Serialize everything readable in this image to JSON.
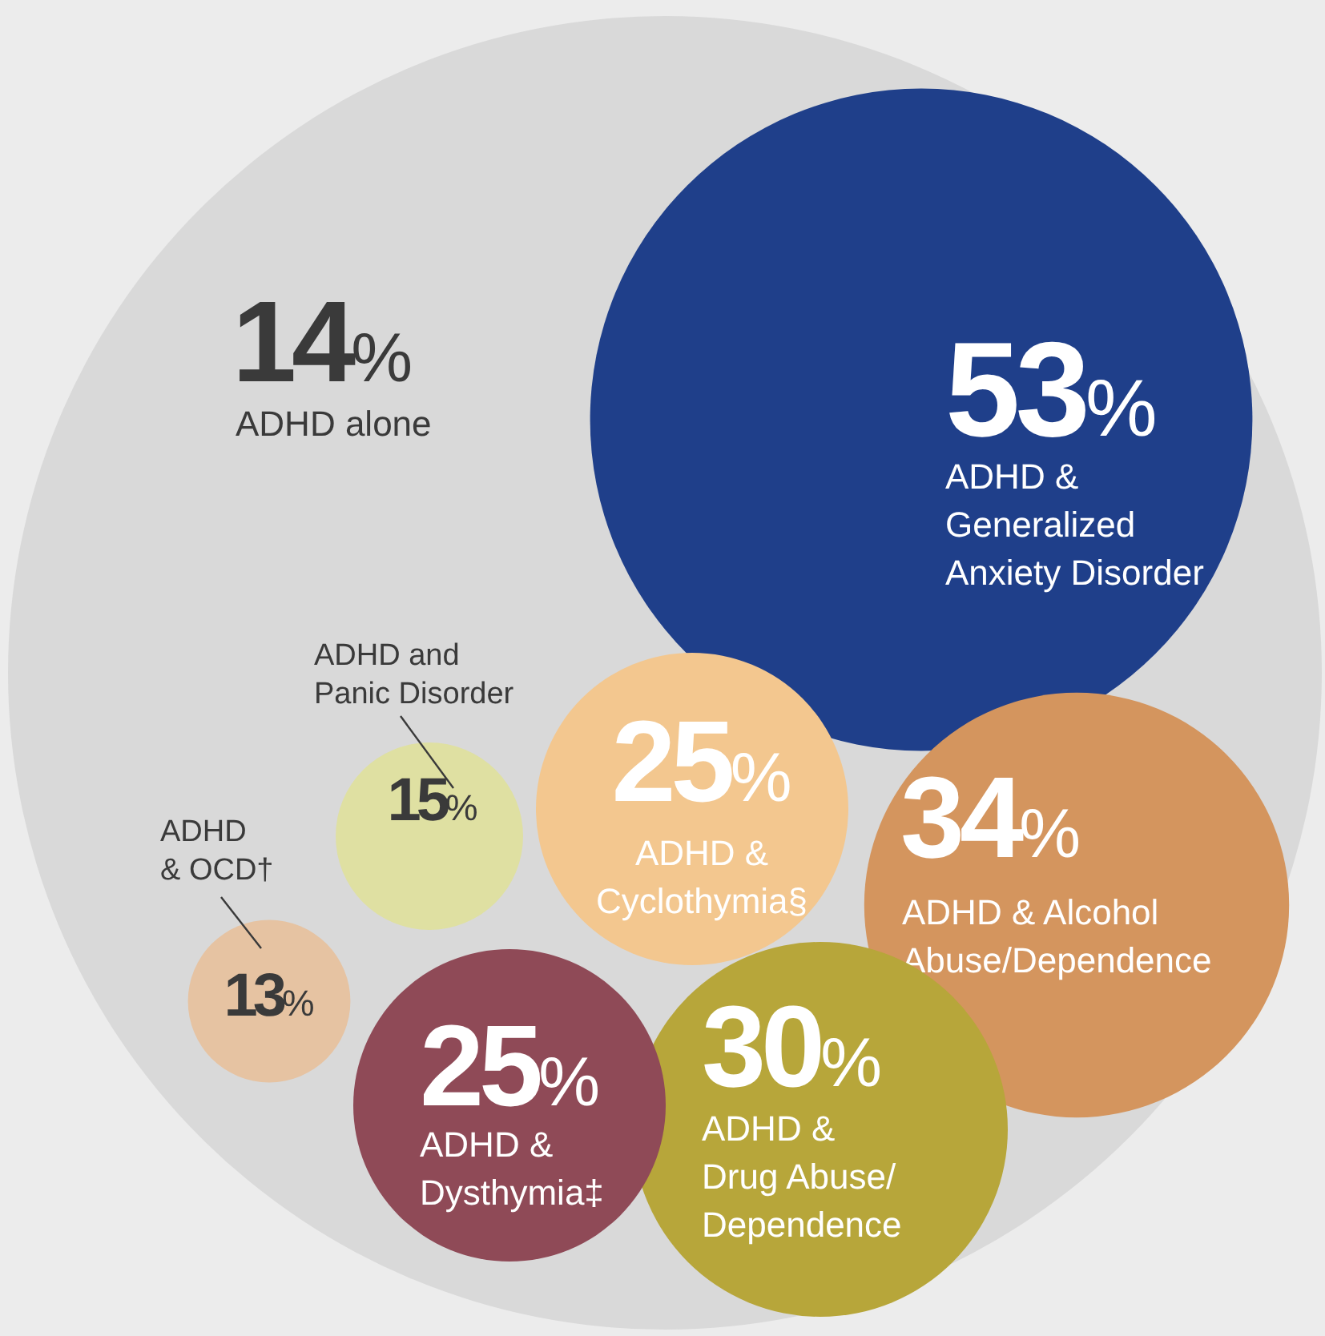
{
  "chart_data": {
    "type": "other",
    "categories": [
      "ADHD alone",
      "ADHD & Generalized Anxiety Disorder",
      "ADHD and Panic Disorder",
      "ADHD & OCD†",
      "ADHD & Cyclothymia§",
      "ADHD & Alcohol Abuse/Dependence",
      "ADHD & Dysthymia‡",
      "ADHD & Drug Abuse/Dependence"
    ],
    "values": [
      14,
      53,
      15,
      13,
      25,
      34,
      25,
      30
    ],
    "value_labels": [
      "14%",
      "53%",
      "15%",
      "13%",
      "25%",
      "34%",
      "25%",
      "30%"
    ],
    "colors": [
      "#d9d9d9",
      "#1f3f8a",
      "#dfe0a2",
      "#e6c3a2",
      "#f3c78f",
      "#d4955e",
      "#8f4a57",
      "#b7a63a"
    ]
  }
}
